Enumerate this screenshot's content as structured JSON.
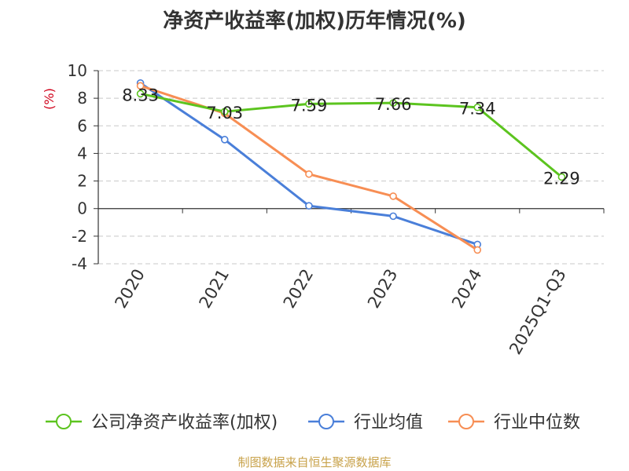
{
  "chart_data": {
    "type": "line",
    "title": "净资产收益率(加权)历年情况(%)",
    "ylabel": "(%)",
    "xlabel": "",
    "categories": [
      "2020",
      "2021",
      "2022",
      "2023",
      "2024",
      "2025Q1-Q3"
    ],
    "ylim": [
      -4,
      10
    ],
    "yticks": [
      -4,
      -2,
      0,
      2,
      4,
      6,
      8,
      10
    ],
    "ytick_labels": [
      "-4",
      "-2",
      "0",
      "2",
      "4",
      "6",
      "8",
      "10"
    ],
    "grid": true,
    "legend_position": "bottom",
    "series": [
      {
        "name": "公司净资产收益率(加权)",
        "color": "#5cc41f",
        "values": [
          8.33,
          7.03,
          7.59,
          7.66,
          7.34,
          2.29
        ],
        "labels": [
          "8.33",
          "7.03",
          "7.59",
          "7.66",
          "7.34",
          "2.29"
        ]
      },
      {
        "name": "行业均值",
        "color": "#4a7fd9",
        "values": [
          9.1,
          5.0,
          0.2,
          -0.55,
          -2.6,
          null
        ]
      },
      {
        "name": "行业中位数",
        "color": "#f78e54",
        "values": [
          8.9,
          6.9,
          2.5,
          0.9,
          -3.0,
          null
        ]
      }
    ]
  },
  "source_text": "制图数据来自恒生聚源数据库"
}
